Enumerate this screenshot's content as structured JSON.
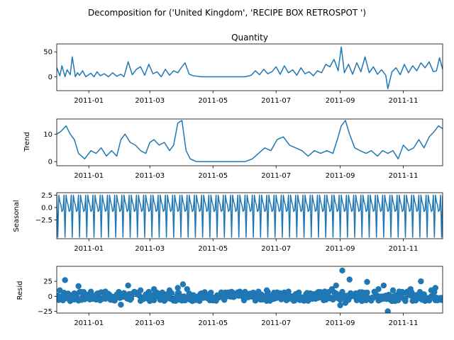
{
  "figure": {
    "suptitle": "Decomposition for ('United Kingdom', 'RECIPE BOX RETROSPOT ')"
  },
  "colors": {
    "series": "#1f77b4",
    "axis": "#000000",
    "background": "#ffffff"
  },
  "chart_data": [
    {
      "type": "line",
      "title": "Quantity",
      "ylabel": "",
      "x_range": [
        "2010-12-01",
        "2011-12-09"
      ],
      "ylim": [
        -28,
        66
      ],
      "yticks": [
        0,
        50
      ],
      "xticks": [
        "2011-01",
        "2011-03",
        "2011-05",
        "2011-07",
        "2011-09",
        "2011-11"
      ],
      "series": [
        {
          "x": [
            "2010-12-01",
            "2010-12-04",
            "2010-12-06",
            "2010-12-09",
            "2010-12-11",
            "2010-12-14",
            "2010-12-16",
            "2010-12-19",
            "2010-12-21",
            "2010-12-23",
            "2010-12-26",
            "2010-12-29",
            "2011-01-03",
            "2011-01-06",
            "2011-01-09",
            "2011-01-12",
            "2011-01-16",
            "2011-01-20",
            "2011-01-24",
            "2011-01-28",
            "2011-02-01",
            "2011-02-04",
            "2011-02-08",
            "2011-02-12",
            "2011-02-16",
            "2011-02-20",
            "2011-02-24",
            "2011-02-28",
            "2011-03-04",
            "2011-03-08",
            "2011-03-12",
            "2011-03-16",
            "2011-03-20",
            "2011-03-24",
            "2011-03-28",
            "2011-04-01",
            "2011-04-04",
            "2011-04-08",
            "2011-04-12",
            "2011-04-20",
            "2011-05-01",
            "2011-05-15",
            "2011-06-01",
            "2011-06-07",
            "2011-06-11",
            "2011-06-15",
            "2011-06-19",
            "2011-06-23",
            "2011-06-27",
            "2011-07-01",
            "2011-07-05",
            "2011-07-09",
            "2011-07-13",
            "2011-07-17",
            "2011-07-21",
            "2011-07-25",
            "2011-07-29",
            "2011-08-02",
            "2011-08-06",
            "2011-08-10",
            "2011-08-14",
            "2011-08-18",
            "2011-08-22",
            "2011-08-26",
            "2011-08-30",
            "2011-09-02",
            "2011-09-05",
            "2011-09-09",
            "2011-09-13",
            "2011-09-17",
            "2011-09-21",
            "2011-09-25",
            "2011-09-29",
            "2011-10-03",
            "2011-10-07",
            "2011-10-11",
            "2011-10-15",
            "2011-10-17",
            "2011-10-21",
            "2011-10-25",
            "2011-10-29",
            "2011-11-02",
            "2011-11-06",
            "2011-11-10",
            "2011-11-14",
            "2011-11-18",
            "2011-11-22",
            "2011-11-26",
            "2011-11-30",
            "2011-12-03",
            "2011-12-06",
            "2011-12-09"
          ],
          "y": [
            18,
            2,
            22,
            0,
            14,
            4,
            40,
            0,
            8,
            3,
            12,
            0,
            7,
            0,
            10,
            2,
            6,
            0,
            8,
            1,
            5,
            0,
            30,
            4,
            15,
            20,
            3,
            25,
            6,
            10,
            0,
            15,
            3,
            12,
            8,
            20,
            28,
            5,
            2,
            0,
            0,
            0,
            0,
            3,
            12,
            4,
            15,
            6,
            10,
            20,
            5,
            22,
            8,
            14,
            3,
            18,
            6,
            10,
            2,
            12,
            8,
            25,
            20,
            35,
            12,
            60,
            8,
            25,
            5,
            28,
            10,
            40,
            8,
            20,
            5,
            14,
            3,
            -24,
            10,
            18,
            4,
            25,
            8,
            22,
            12,
            28,
            18,
            30,
            10,
            12,
            38,
            15
          ]
        }
      ]
    },
    {
      "type": "line",
      "title": "",
      "ylabel": "Trend",
      "x_range": [
        "2010-12-01",
        "2011-12-09"
      ],
      "ylim": [
        -1.5,
        15.5
      ],
      "yticks": [
        0,
        10
      ],
      "xticks": [
        "2011-01",
        "2011-03",
        "2011-05",
        "2011-07",
        "2011-09",
        "2011-11"
      ],
      "series": [
        {
          "x": [
            "2010-12-01",
            "2010-12-05",
            "2010-12-10",
            "2010-12-14",
            "2010-12-18",
            "2010-12-22",
            "2010-12-28",
            "2011-01-03",
            "2011-01-08",
            "2011-01-13",
            "2011-01-18",
            "2011-01-23",
            "2011-01-28",
            "2011-02-01",
            "2011-02-05",
            "2011-02-10",
            "2011-02-15",
            "2011-02-20",
            "2011-02-25",
            "2011-03-01",
            "2011-03-05",
            "2011-03-10",
            "2011-03-15",
            "2011-03-20",
            "2011-03-24",
            "2011-03-28",
            "2011-04-01",
            "2011-04-05",
            "2011-04-09",
            "2011-04-15",
            "2011-05-01",
            "2011-05-20",
            "2011-06-01",
            "2011-06-08",
            "2011-06-14",
            "2011-06-20",
            "2011-06-26",
            "2011-07-02",
            "2011-07-08",
            "2011-07-14",
            "2011-07-20",
            "2011-07-26",
            "2011-08-01",
            "2011-08-07",
            "2011-08-13",
            "2011-08-19",
            "2011-08-25",
            "2011-08-30",
            "2011-09-02",
            "2011-09-06",
            "2011-09-10",
            "2011-09-15",
            "2011-09-20",
            "2011-09-26",
            "2011-10-01",
            "2011-10-07",
            "2011-10-12",
            "2011-10-17",
            "2011-10-22",
            "2011-10-27",
            "2011-11-01",
            "2011-11-06",
            "2011-11-11",
            "2011-11-16",
            "2011-11-21",
            "2011-11-26",
            "2011-12-01",
            "2011-12-05",
            "2011-12-09"
          ],
          "y": [
            10,
            11,
            13,
            10,
            8,
            3,
            1,
            4,
            3,
            5,
            2,
            4,
            2,
            8,
            10,
            7,
            6,
            4,
            3,
            7,
            8,
            6,
            7,
            4,
            6,
            14,
            15,
            4,
            1,
            0,
            0,
            0,
            0,
            1,
            3,
            5,
            4,
            8,
            9,
            6,
            5,
            4,
            2,
            4,
            3,
            4,
            3,
            9,
            13,
            15,
            10,
            5,
            4,
            3,
            4,
            2,
            4,
            3,
            4,
            1,
            6,
            4,
            5,
            8,
            5,
            9,
            11,
            13,
            12
          ]
        }
      ]
    },
    {
      "type": "line",
      "title": "",
      "ylabel": "Seasonal",
      "x_range": [
        "2010-12-01",
        "2011-12-09"
      ],
      "ylim": [
        -6.3,
        3.0
      ],
      "yticks": [
        2.5,
        0.0,
        -2.5
      ],
      "ytick_labels": [
        "2.5",
        "0.0",
        "−2.5"
      ],
      "xticks": [
        "2011-01",
        "2011-03",
        "2011-05",
        "2011-07",
        "2011-09",
        "2011-11"
      ],
      "series": [
        {
          "pattern": [
            2.5,
            -6.0,
            2.5,
            1.2,
            0.5,
            -0.8,
            -0.5
          ],
          "period_days": 7,
          "start": "2010-12-01",
          "end": "2011-12-09"
        }
      ]
    },
    {
      "type": "scatter",
      "title": "",
      "ylabel": "Resid",
      "x_range": [
        "2010-12-01",
        "2011-12-09"
      ],
      "ylim": [
        -28,
        50
      ],
      "yticks": [
        25,
        0,
        -25
      ],
      "ytick_labels": [
        "25",
        "0",
        "−25"
      ],
      "xticks": [
        "2011-01",
        "2011-03",
        "2011-05",
        "2011-07",
        "2011-09",
        "2011-11"
      ],
      "series": [
        {
          "x": [
            "2010-12-04",
            "2010-12-09",
            "2010-12-14",
            "2010-12-18",
            "2010-12-22",
            "2011-01-02",
            "2011-01-10",
            "2011-01-17",
            "2011-01-24",
            "2011-02-01",
            "2011-02-08",
            "2011-02-14",
            "2011-02-20",
            "2011-02-28",
            "2011-03-05",
            "2011-03-12",
            "2011-03-20",
            "2011-03-28",
            "2011-04-02",
            "2011-04-06",
            "2011-04-12",
            "2011-04-20",
            "2011-05-01",
            "2011-05-10",
            "2011-05-20",
            "2011-06-01",
            "2011-06-08",
            "2011-06-15",
            "2011-06-22",
            "2011-06-29",
            "2011-07-06",
            "2011-07-13",
            "2011-07-20",
            "2011-07-27",
            "2011-08-03",
            "2011-08-10",
            "2011-08-17",
            "2011-08-24",
            "2011-08-28",
            "2011-09-01",
            "2011-09-03",
            "2011-09-06",
            "2011-09-10",
            "2011-09-16",
            "2011-09-22",
            "2011-09-27",
            "2011-10-02",
            "2011-10-08",
            "2011-10-13",
            "2011-10-17",
            "2011-10-22",
            "2011-10-28",
            "2011-11-03",
            "2011-11-08",
            "2011-11-13",
            "2011-11-18",
            "2011-11-23",
            "2011-11-28",
            "2011-12-02",
            "2011-12-06"
          ],
          "y": [
            10,
            27,
            -8,
            5,
            17,
            -3,
            5,
            8,
            -4,
            -14,
            18,
            6,
            10,
            -5,
            12,
            -2,
            10,
            14,
            20,
            12,
            -5,
            5,
            -2,
            3,
            0,
            -2,
            5,
            -3,
            10,
            6,
            -4,
            8,
            2,
            -2,
            5,
            -3,
            8,
            12,
            18,
            -15,
            43,
            -11,
            28,
            5,
            -8,
            24,
            -2,
            12,
            18,
            -25,
            10,
            8,
            -4,
            12,
            -6,
            25,
            -4,
            10,
            14,
            -3
          ],
          "noise_points_per_day": 1,
          "noise_range": [
            -8,
            8
          ]
        }
      ]
    }
  ]
}
